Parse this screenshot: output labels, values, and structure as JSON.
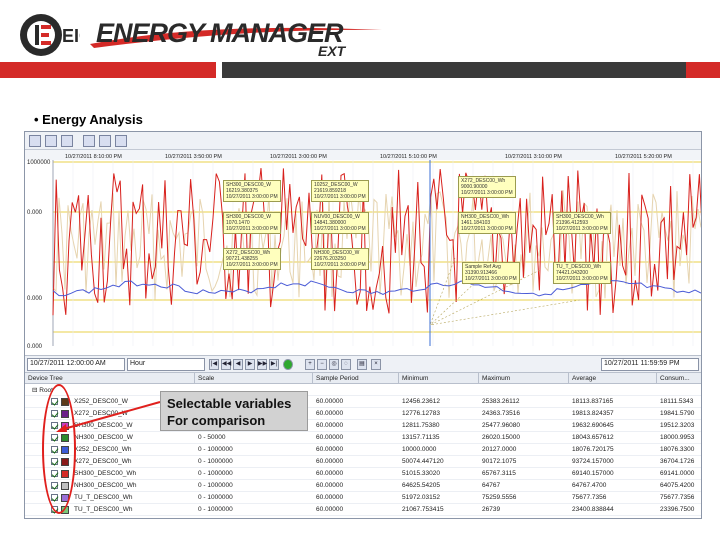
{
  "logo": {
    "mark_letters": "EIG",
    "wordmark": "ENERGY MANAGER",
    "suffix": "EXT"
  },
  "slide": {
    "bullet": "• Energy Analysis"
  },
  "chart": {
    "y_ticks": [
      "1000000",
      "0.000",
      "0.000",
      "0.000"
    ],
    "x_ticks": [
      "10/27/2011 8:10:00 PM",
      "10/27/2011 3:50:00 PM",
      "10/27/2011 3:00:00 PM",
      "10/27/2011 5:10:00 PM",
      "10/27/2011 3:10:00 PM",
      "10/27/2011 5:20:00 PM"
    ],
    "tooltips": [
      [
        "SH300_DESC00_W",
        "16219.380375",
        "10/27/2011 3:00:00 PM"
      ],
      [
        "10252_DESC00_W",
        "21619.859218",
        "10/27/2011 3:00:00 PM"
      ],
      [
        "X272_DESC00_Wh",
        "9000.90000",
        "10/27/2011 3:00:00 PM"
      ],
      [
        "SH300_DESC00_W",
        "1070.1470",
        "10/27/2011 3:00:00 PM"
      ],
      [
        "NUV00_DESC00_W",
        "14841.380000",
        "10/27/2011 3:00:00 PM"
      ],
      [
        "NH300_DESC00_Wh",
        "1461.184103",
        "10/27/2011 3:00:00 PM"
      ],
      [
        "SH300_DESC00_Wh",
        "21396.412593",
        "10/27/2011 3:00:00 PM"
      ],
      [
        "X272_DESC00_Wh",
        "90721.438255",
        "10/27/2011 3:00:00 PM"
      ],
      [
        "NH300_DESC00_W",
        "22676.203250",
        "10/27/2011 3:00:00 PM"
      ],
      [
        "Sample Ref Avg",
        "31390.913466",
        "10/27/2011 3:00:00 PM"
      ],
      [
        "TU_T_DESC00_Wh",
        "74421.043200",
        "10/27/2011 3:00:00 PM"
      ]
    ]
  },
  "toolbar_bottom": {
    "date_select": "10/27/2011 12:00:00 AM",
    "interval_select": "Hour",
    "end_select": "10/27/2011 11:59:59 PM"
  },
  "grid": {
    "columns": [
      "Device Tree",
      "Scale",
      "Sample Period",
      "Minimum",
      "Maximum",
      "Average",
      "Consum..."
    ],
    "group_label": "Root",
    "rows": [
      {
        "name": "X252_DESC00_W",
        "color": "#5b3a1a",
        "checked": true,
        "scale": "0 - 50000",
        "period": "60.00000",
        "min": "12456.23612",
        "max": "25383.26112",
        "avg": "18113.837165",
        "cons": "18111.5343"
      },
      {
        "name": "X272_DESC00_W",
        "color": "#6b1f8a",
        "checked": true,
        "scale": "0 - 50000",
        "period": "60.00000",
        "min": "12776.12783",
        "max": "24363.73516",
        "avg": "19813.824357",
        "cons": "19841.5790"
      },
      {
        "name": "SH300_DESC00_W",
        "color": "#c93dbf",
        "checked": true,
        "scale": "0 - 50000",
        "period": "60.00000",
        "min": "12811.75380",
        "max": "25477.96080",
        "avg": "19632.690645",
        "cons": "19512.3203"
      },
      {
        "name": "NH300_DESC00_W",
        "color": "#2e8b2e",
        "checked": true,
        "scale": "0 - 50000",
        "period": "60.00000",
        "min": "13157.71135",
        "max": "26020.15000",
        "avg": "18043.657612",
        "cons": "18000.9953"
      },
      {
        "name": "X252_DESC00_Wh",
        "color": "#3b5bd6",
        "checked": true,
        "scale": "0 - 1000000",
        "period": "60.00000",
        "min": "10000.0000",
        "max": "20127.0000",
        "avg": "18076.720175",
        "cons": "18076.3300"
      },
      {
        "name": "X272_DESC00_Wh",
        "color": "#8b1a1a",
        "checked": true,
        "scale": "0 - 1000000",
        "period": "60.00000",
        "min": "50074.447120",
        "max": "90172.1075",
        "avg": "93724.157000",
        "cons": "36704.1726"
      },
      {
        "name": "SH300_DESC00_Wh",
        "color": "#d42a27",
        "checked": true,
        "scale": "0 - 1000000",
        "period": "60.00000",
        "min": "51015.33020",
        "max": "65767.3115",
        "avg": "69140.157000",
        "cons": "69141.0000"
      },
      {
        "name": "NH300_DESC00_Wh",
        "color": "#c0c0c0",
        "checked": true,
        "scale": "0 - 1000000",
        "period": "60.00000",
        "min": "64625.54205",
        "max": "64767",
        "avg": "64767.4700",
        "cons": "64075.4200"
      },
      {
        "name": "TU_T_DESC00_Wh",
        "color": "#9a6fd6",
        "checked": true,
        "scale": "0 - 1000000",
        "period": "60.00000",
        "min": "51972.03152",
        "max": "75259.5556",
        "avg": "75677.7356",
        "cons": "75677.7356"
      },
      {
        "name": "TU_T_DESC00_Wh",
        "color": "#78c878",
        "checked": true,
        "scale": "0 - 1000000",
        "period": "60.00000",
        "min": "21067.753415",
        "max": "26739",
        "avg": "23400.838844",
        "cons": "23396.7500"
      }
    ]
  },
  "callout": {
    "line1": "Selectable variables",
    "line2": "For comparison"
  },
  "colors": {
    "brand_red": "#d42a27",
    "series_red": "#d8201c",
    "series_beige": "#e6d4b0",
    "series_blue": "#4a5bd6"
  }
}
